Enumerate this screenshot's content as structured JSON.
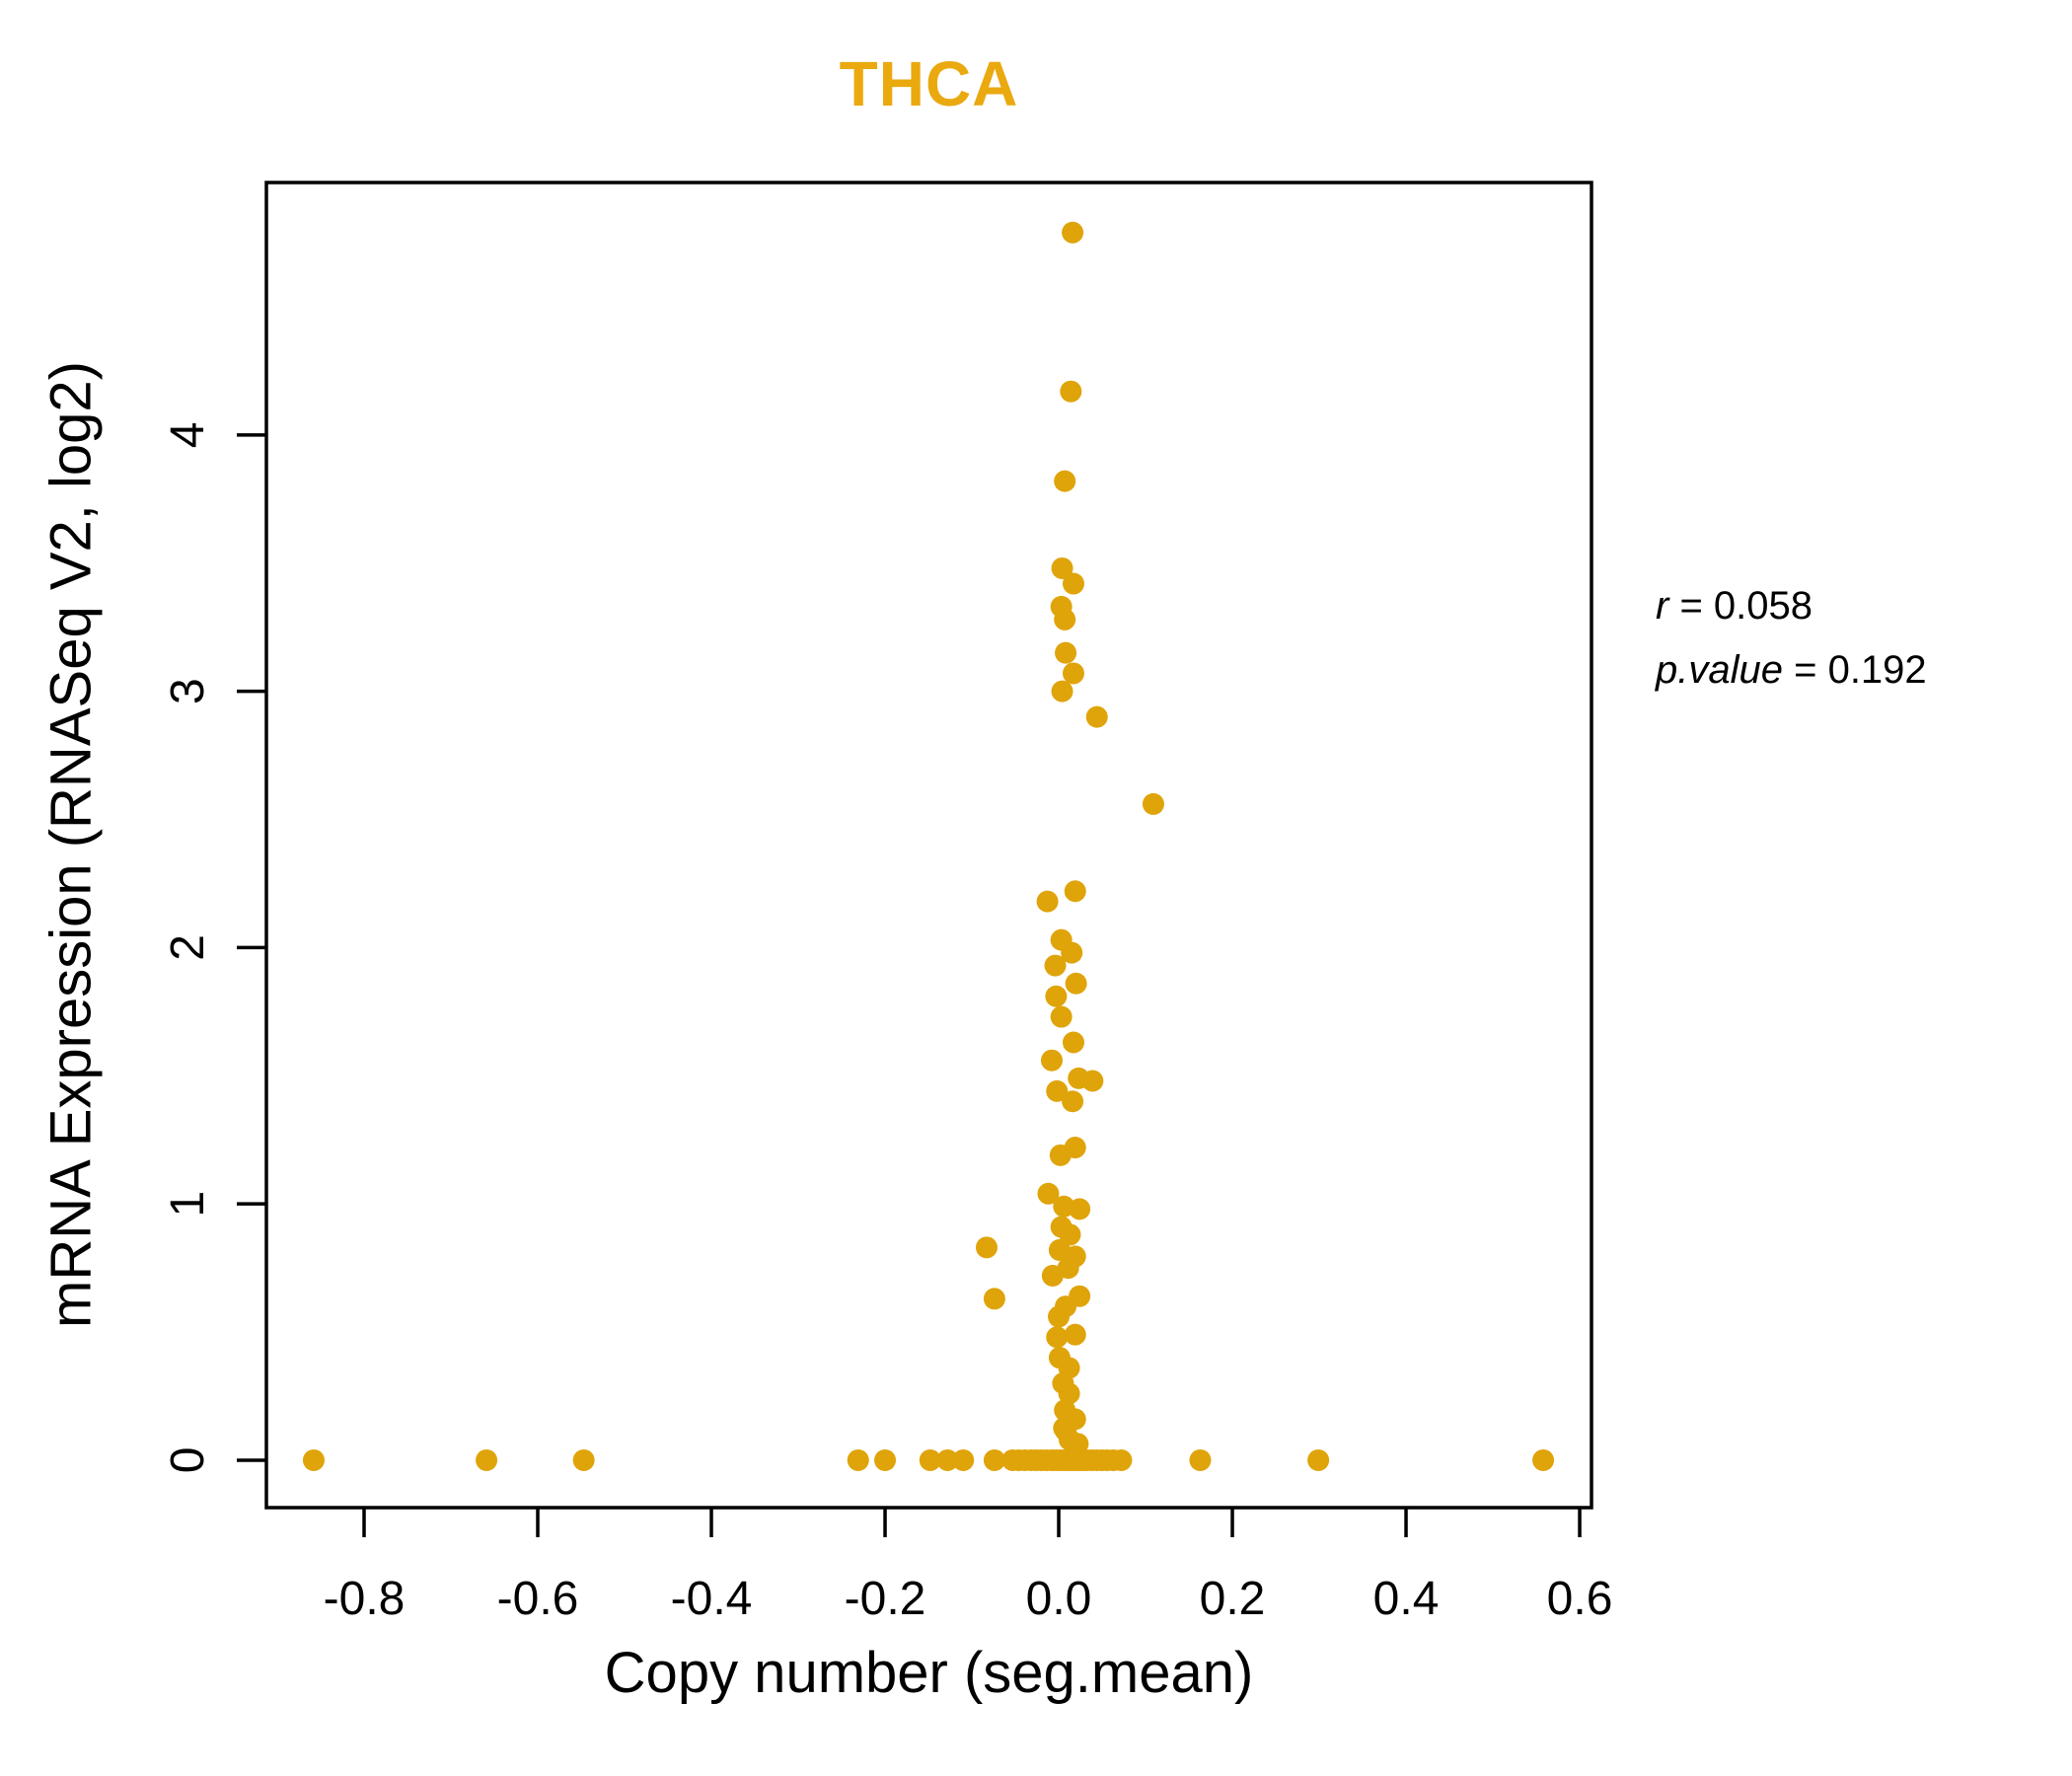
{
  "page": {
    "background": "#ffffff"
  },
  "annotation": {
    "lines": [
      {
        "lhs": "r",
        "rhs": " = 0.058"
      },
      {
        "lhs": "p.value",
        "rhs": " = 0.192"
      }
    ]
  },
  "chart_data": {
    "type": "scatter",
    "title": "THCA",
    "title_color": "#E9A90F",
    "xlabel": "Copy number (seg.mean)",
    "ylabel": "mRNA Expression (RNASeq V2, log2)",
    "xlim": [
      -0.9125,
      0.6136
    ],
    "ylim": [
      -0.185,
      4.985
    ],
    "x_ticks": [
      -0.8,
      -0.6,
      -0.4,
      -0.2,
      0.0,
      0.2,
      0.4,
      0.6
    ],
    "x_tick_labels": [
      "-0.8",
      "-0.6",
      "-0.4",
      "-0.2",
      "0.0",
      "0.2",
      "0.4",
      "0.6"
    ],
    "y_ticks": [
      0,
      1,
      2,
      3,
      4
    ],
    "y_tick_labels": [
      "0",
      "1",
      "2",
      "3",
      "4"
    ],
    "grid": false,
    "legend": null,
    "point_color": "#DFA40A",
    "point_radius": 11,
    "correlation": {
      "r": 0.058,
      "p_value": 0.192
    },
    "points": [
      [
        0.016,
        4.79
      ],
      [
        0.014,
        4.17
      ],
      [
        0.007,
        3.82
      ],
      [
        0.004,
        3.48
      ],
      [
        0.017,
        3.42
      ],
      [
        0.003,
        3.33
      ],
      [
        0.007,
        3.28
      ],
      [
        0.008,
        3.15
      ],
      [
        0.017,
        3.07
      ],
      [
        0.004,
        3.0
      ],
      [
        0.044,
        2.9
      ],
      [
        0.109,
        2.56
      ],
      [
        0.019,
        2.22
      ],
      [
        -0.013,
        2.18
      ],
      [
        0.003,
        2.03
      ],
      [
        0.015,
        1.98
      ],
      [
        -0.004,
        1.93
      ],
      [
        0.02,
        1.86
      ],
      [
        -0.003,
        1.81
      ],
      [
        0.003,
        1.73
      ],
      [
        0.017,
        1.63
      ],
      [
        -0.008,
        1.56
      ],
      [
        0.023,
        1.49
      ],
      [
        0.039,
        1.48
      ],
      [
        -0.002,
        1.44
      ],
      [
        0.016,
        1.4
      ],
      [
        0.019,
        1.22
      ],
      [
        0.002,
        1.19
      ],
      [
        -0.012,
        1.04
      ],
      [
        0.006,
        0.99
      ],
      [
        0.024,
        0.98
      ],
      [
        0.003,
        0.91
      ],
      [
        0.013,
        0.88
      ],
      [
        0.001,
        0.82
      ],
      [
        0.019,
        0.795
      ],
      [
        0.011,
        0.75
      ],
      [
        -0.007,
        0.72
      ],
      [
        0.024,
        0.64
      ],
      [
        0.008,
        0.6
      ],
      [
        -0.083,
        0.83
      ],
      [
        -0.074,
        0.63
      ],
      [
        0.0,
        0.56
      ],
      [
        0.019,
        0.49
      ],
      [
        -0.002,
        0.48
      ],
      [
        0.001,
        0.4
      ],
      [
        0.012,
        0.36
      ],
      [
        0.005,
        0.3
      ],
      [
        0.012,
        0.26
      ],
      [
        0.007,
        0.195
      ],
      [
        0.019,
        0.16
      ],
      [
        0.006,
        0.125
      ],
      [
        0.008,
        0.115
      ],
      [
        0.0125,
        0.08
      ],
      [
        0.022,
        0.064
      ],
      [
        -0.858,
        0
      ],
      [
        -0.659,
        0
      ],
      [
        -0.547,
        0
      ],
      [
        -0.231,
        0
      ],
      [
        -0.2,
        0
      ],
      [
        -0.148,
        0
      ],
      [
        -0.128,
        0
      ],
      [
        -0.11,
        0
      ],
      [
        -0.074,
        0
      ],
      [
        -0.053,
        0
      ],
      [
        -0.046,
        0
      ],
      [
        -0.039,
        0
      ],
      [
        -0.032,
        0
      ],
      [
        -0.026,
        0
      ],
      [
        -0.02,
        0
      ],
      [
        -0.014,
        0
      ],
      [
        -0.008,
        0
      ],
      [
        -0.003,
        0
      ],
      [
        0.002,
        0
      ],
      [
        0.007,
        0
      ],
      [
        0.012,
        0
      ],
      [
        0.017,
        0
      ],
      [
        0.022,
        0
      ],
      [
        0.027,
        0
      ],
      [
        0.032,
        0
      ],
      [
        0.038,
        0
      ],
      [
        0.044,
        0
      ],
      [
        0.05,
        0
      ],
      [
        0.056,
        0
      ],
      [
        0.063,
        0
      ],
      [
        0.072,
        0
      ],
      [
        0.163,
        0
      ],
      [
        0.299,
        0
      ],
      [
        0.558,
        0
      ]
    ]
  }
}
